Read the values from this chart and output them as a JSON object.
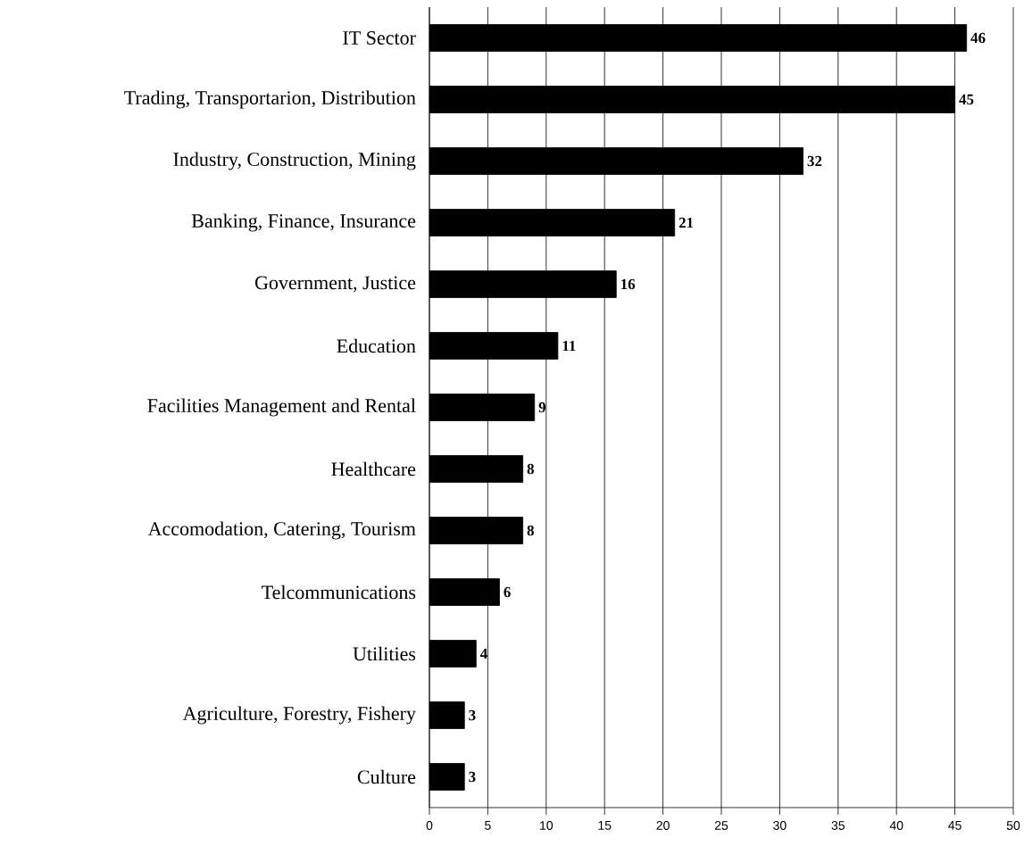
{
  "chart_data": {
    "type": "bar",
    "orientation": "horizontal",
    "categories": [
      "IT Sector",
      "Trading, Transportarion, Distribution",
      "Industry, Construction, Mining",
      "Banking, Finance, Insurance",
      "Government, Justice",
      "Education",
      "Facilities Management and Rental",
      "Healthcare",
      "Accomodation, Catering, Tourism",
      "Telcommunications",
      "Utilities",
      "Agriculture, Forestry, Fishery",
      "Culture"
    ],
    "values": [
      46,
      45,
      32,
      21,
      16,
      11,
      9,
      8,
      8,
      6,
      4,
      3,
      3
    ],
    "color": "#000000",
    "xlim": [
      0,
      50
    ],
    "xticks": [
      0,
      5,
      10,
      15,
      20,
      25,
      30,
      35,
      40,
      45,
      50
    ],
    "grid": "x",
    "data_labels": true
  }
}
